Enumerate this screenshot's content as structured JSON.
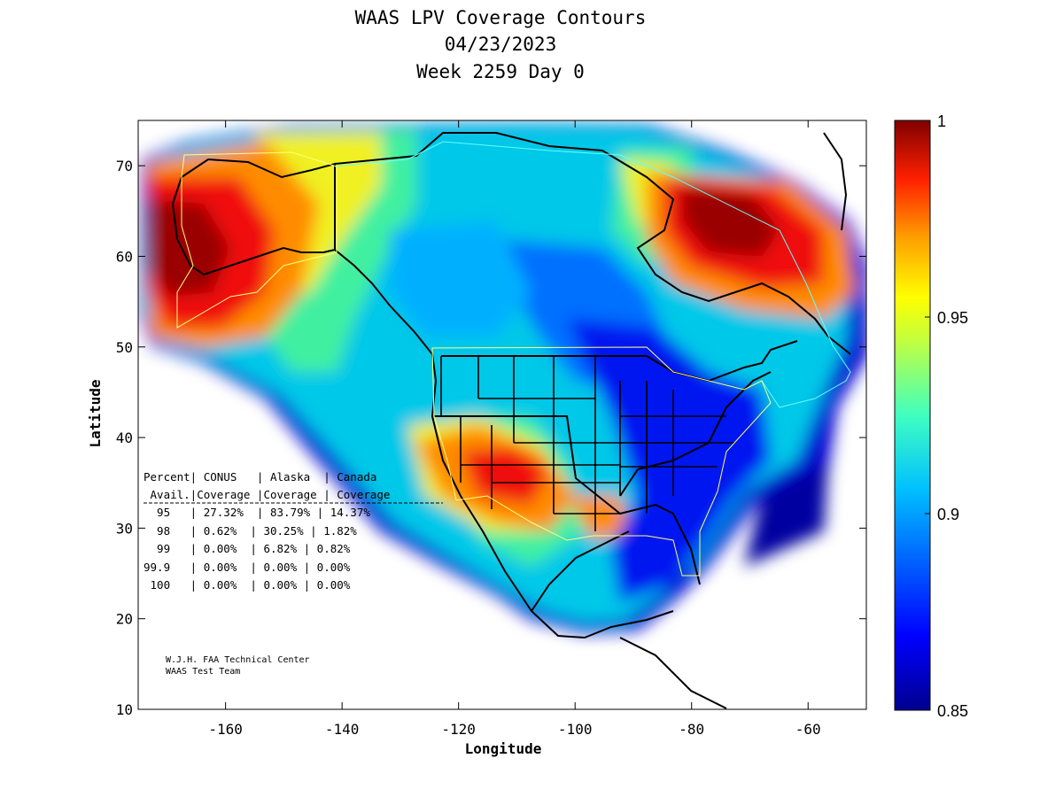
{
  "title": {
    "line1": "WAAS LPV Coverage Contours",
    "line2": "04/23/2023",
    "line3": "Week 2259 Day 0"
  },
  "axes": {
    "x": {
      "label": "Longitude",
      "range": [
        -175,
        -50
      ],
      "ticks": [
        -160,
        -140,
        -120,
        -100,
        -80,
        -60
      ],
      "tick_labels": [
        "-160",
        "-140",
        "-120",
        "-100",
        "-80",
        "-60"
      ]
    },
    "y": {
      "label": "Latitude",
      "range": [
        10,
        75
      ],
      "ticks": [
        10,
        20,
        30,
        40,
        50,
        60,
        70
      ],
      "tick_labels": [
        "10",
        "20",
        "30",
        "40",
        "50",
        "60",
        "70"
      ]
    }
  },
  "colorbar": {
    "range": [
      0.85,
      1
    ],
    "ticks": [
      0.85,
      0.9,
      0.95,
      1
    ],
    "tick_labels": [
      "0.85",
      "0.9",
      "0.95",
      "1"
    ],
    "colormap": [
      "#00008f",
      "#0000ff",
      "#0080ff",
      "#00ffff",
      "#80ff80",
      "#ffff00",
      "#ff8000",
      "#ff0000",
      "#800000"
    ]
  },
  "stats_table": {
    "rows": [
      "Percent| CONUS   | Alaska  | Canada",
      " Avail.|Coverage |Coverage | Coverage",
      "  95   | 27.32%  | 83.79% | 14.37%",
      "  98   | 0.62%  | 30.25% | 1.82%",
      "  99   | 0.00%  | 6.82% | 0.82%",
      "99.9   | 0.00%  | 0.00% | 0.00%",
      " 100   | 0.00%  | 0.00% | 0.00%"
    ]
  },
  "credit": {
    "line1": "W.J.H. FAA Technical Center",
    "line2": "WAAS Test Team"
  }
}
